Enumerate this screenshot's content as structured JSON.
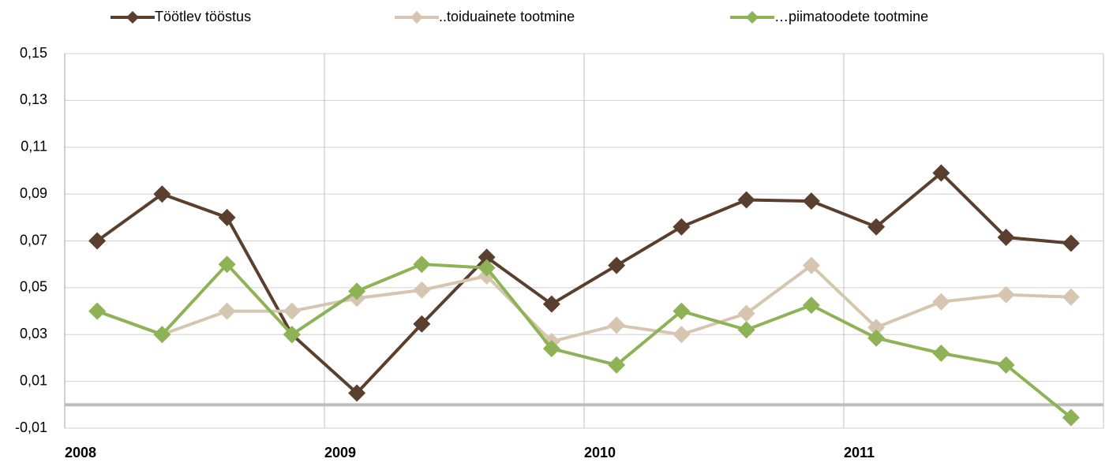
{
  "chart_data": {
    "type": "line",
    "categories": [
      "2008",
      null,
      null,
      null,
      "2009",
      null,
      null,
      null,
      "2010",
      null,
      null,
      null,
      "2011",
      null,
      null,
      null
    ],
    "series": [
      {
        "name": "Töötlev tööstus",
        "color": "#5a3f2e",
        "values": [
          0.07,
          0.09,
          0.08,
          0.03,
          0.005,
          0.0345,
          0.063,
          0.043,
          0.0595,
          0.076,
          0.0875,
          0.087,
          0.076,
          0.099,
          0.0715,
          0.069
        ]
      },
      {
        "name": "..toiduainete tootmine",
        "color": "#d6c6b1",
        "values": [
          0.04,
          0.03,
          0.04,
          0.04,
          0.0455,
          0.049,
          0.055,
          0.027,
          0.034,
          0.03,
          0.039,
          0.0595,
          0.033,
          0.044,
          0.047,
          0.046
        ]
      },
      {
        "name": "…piimatoodete tootmine",
        "color": "#8db356",
        "values": [
          0.04,
          0.03,
          0.06,
          0.03,
          0.0485,
          0.06,
          0.0585,
          0.024,
          0.017,
          0.04,
          0.032,
          0.0425,
          0.0285,
          0.022,
          0.017,
          -0.0055
        ]
      }
    ],
    "ylim": [
      -0.01,
      0.15
    ],
    "yticks": [
      {
        "value": -0.01,
        "label": "-0,01"
      },
      {
        "value": 0.01,
        "label": "0,01"
      },
      {
        "value": 0.03,
        "label": "0,03"
      },
      {
        "value": 0.05,
        "label": "0,05"
      },
      {
        "value": 0.07,
        "label": "0,07"
      },
      {
        "value": 0.09,
        "label": "0,09"
      },
      {
        "value": 0.11,
        "label": "0,11"
      },
      {
        "value": 0.13,
        "label": "0,13"
      },
      {
        "value": 0.15,
        "label": "0,15"
      }
    ],
    "grid": true
  }
}
